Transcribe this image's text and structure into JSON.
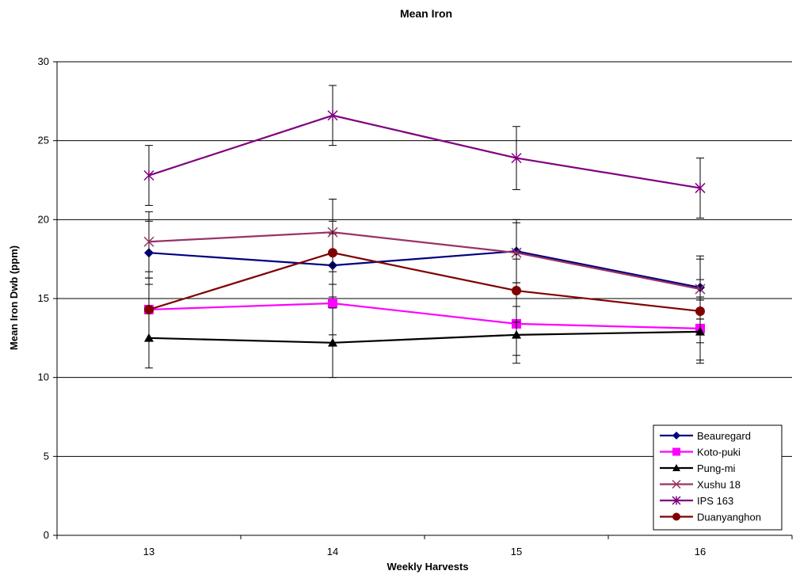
{
  "chart_data": {
    "type": "line",
    "title": "Mean Iron",
    "xlabel": "Weekly Harvests",
    "ylabel": "Mean Iron Dwb (ppm)",
    "categories": [
      "13",
      "14",
      "15",
      "16"
    ],
    "ylim": [
      0,
      30
    ],
    "yticks": [
      0,
      5,
      10,
      15,
      20,
      25,
      30
    ],
    "grid": "horizontal major",
    "legend": "bottom-right",
    "series": [
      {
        "name": "Beauregard",
        "values": [
          17.9,
          17.1,
          18.0,
          15.7
        ],
        "err": [
          2.0,
          2.0,
          2.0,
          2.0
        ],
        "color": "#000080",
        "marker": "diamond"
      },
      {
        "name": "Koto-puki",
        "values": [
          14.3,
          14.7,
          13.4,
          13.1
        ],
        "err": [
          2.0,
          2.0,
          2.0,
          2.0
        ],
        "color": "#FF00FF",
        "marker": "square"
      },
      {
        "name": "Pung-mi",
        "values": [
          12.5,
          12.2,
          12.7,
          12.9
        ],
        "err": [
          1.9,
          2.2,
          1.8,
          2.0
        ],
        "color": "#000000",
        "marker": "triangle"
      },
      {
        "name": "Xushu 18",
        "values": [
          18.6,
          19.2,
          17.9,
          15.6
        ],
        "err": [
          1.9,
          2.1,
          1.9,
          1.9
        ],
        "color": "#993366",
        "marker": "x"
      },
      {
        "name": "IPS 163",
        "values": [
          22.8,
          26.6,
          23.9,
          22.0
        ],
        "err": [
          1.9,
          1.9,
          2.0,
          1.9
        ],
        "color": "#800080",
        "marker": "star"
      },
      {
        "name": "Duanyanghon",
        "values": [
          14.3,
          17.9,
          15.5,
          14.2
        ],
        "err": [
          2.0,
          2.0,
          2.0,
          2.0
        ],
        "color": "#800000",
        "marker": "circle"
      }
    ]
  }
}
